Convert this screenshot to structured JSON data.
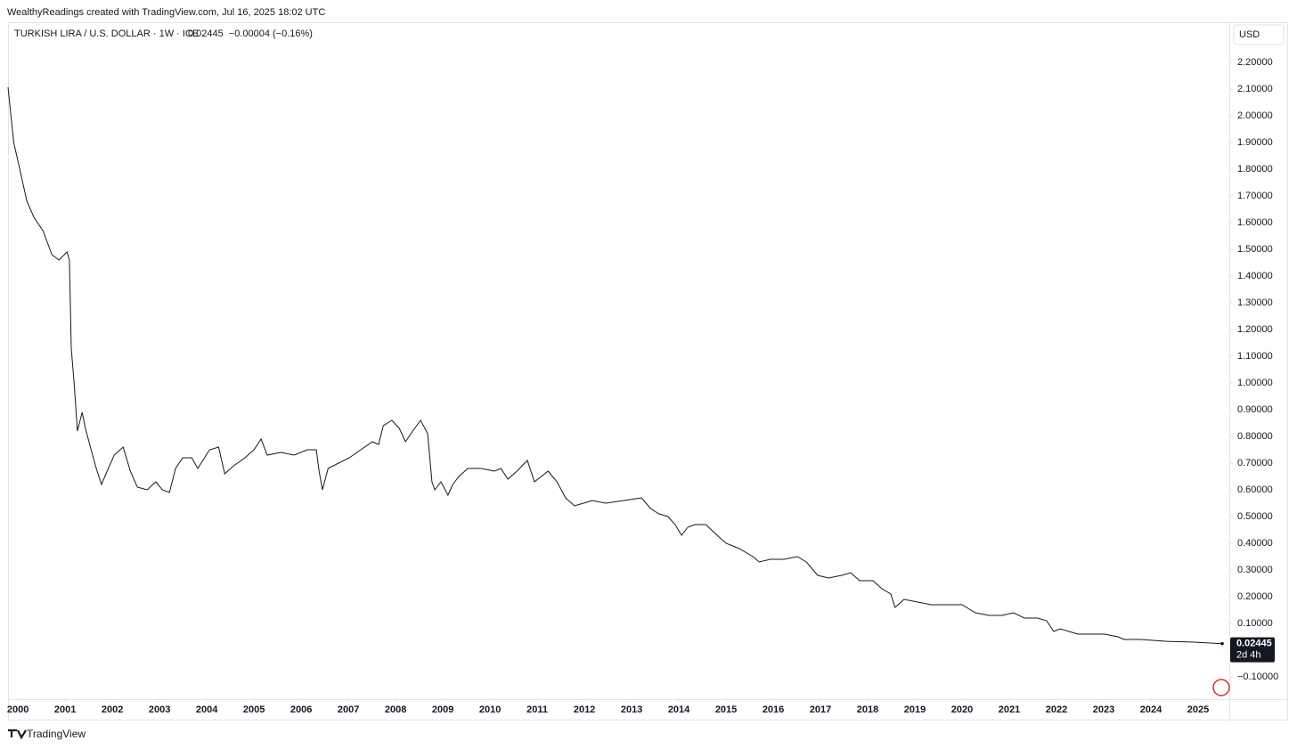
{
  "header": "WealthyReadings created with TradingView.com, Jul 16, 2025 18:02 UTC",
  "footer": "TradingView",
  "chart_data": {
    "type": "line",
    "title": "TURKISH LIRA / U.S. DOLLAR · 1W · ICE",
    "last_price": "0.02445",
    "change": "−0.00004 (−0.16%)",
    "currency": "USD",
    "countdown": "2d 4h",
    "color": "#131722",
    "x": [
      1999.79,
      1999.91,
      2000.04,
      2000.19,
      2000.34,
      2000.53,
      2000.72,
      2000.87,
      2001.04,
      2001.09,
      2001.13,
      2001.19,
      2001.26,
      2001.36,
      2001.43,
      2001.55,
      2001.66,
      2001.77,
      2001.89,
      2002.04,
      2002.23,
      2002.38,
      2002.53,
      2002.74,
      2002.92,
      2003.06,
      2003.21,
      2003.34,
      2003.49,
      2003.68,
      2003.81,
      2004.06,
      2004.25,
      2004.38,
      2004.57,
      2004.81,
      2005.0,
      2005.15,
      2005.28,
      2005.57,
      2005.85,
      2006.13,
      2006.32,
      2006.38,
      2006.45,
      2006.57,
      2006.79,
      2007.02,
      2007.26,
      2007.51,
      2007.64,
      2007.74,
      2007.92,
      2008.08,
      2008.21,
      2008.36,
      2008.53,
      2008.68,
      2008.77,
      2008.83,
      2008.96,
      2009.11,
      2009.21,
      2009.34,
      2009.53,
      2009.81,
      2010.09,
      2010.23,
      2010.38,
      2010.57,
      2010.79,
      2010.94,
      2011.23,
      2011.42,
      2011.6,
      2011.79,
      2011.98,
      2012.17,
      2012.45,
      2012.83,
      2013.21,
      2013.4,
      2013.58,
      2013.77,
      2013.92,
      2014.06,
      2014.19,
      2014.34,
      2014.57,
      2014.81,
      2015.0,
      2015.28,
      2015.57,
      2015.7,
      2015.94,
      2016.23,
      2016.51,
      2016.7,
      2016.94,
      2017.17,
      2017.45,
      2017.64,
      2017.83,
      2018.11,
      2018.3,
      2018.49,
      2018.58,
      2018.77,
      2019.06,
      2019.34,
      2019.62,
      2020.0,
      2020.28,
      2020.57,
      2020.85,
      2021.09,
      2021.32,
      2021.6,
      2021.79,
      2021.94,
      2022.08,
      2022.45,
      2023.02,
      2023.3,
      2023.43,
      2023.77,
      2024.34,
      2024.91,
      2025.51
    ],
    "values": [
      2.107,
      1.9,
      1.8,
      1.68,
      1.62,
      1.57,
      1.48,
      1.46,
      1.49,
      1.46,
      1.13,
      1.0,
      0.82,
      0.89,
      0.83,
      0.75,
      0.68,
      0.62,
      0.67,
      0.73,
      0.76,
      0.67,
      0.61,
      0.6,
      0.63,
      0.6,
      0.59,
      0.68,
      0.72,
      0.72,
      0.68,
      0.75,
      0.76,
      0.66,
      0.69,
      0.72,
      0.75,
      0.79,
      0.73,
      0.74,
      0.73,
      0.75,
      0.75,
      0.67,
      0.6,
      0.68,
      0.7,
      0.72,
      0.75,
      0.78,
      0.77,
      0.84,
      0.86,
      0.83,
      0.78,
      0.82,
      0.86,
      0.81,
      0.63,
      0.6,
      0.63,
      0.58,
      0.62,
      0.65,
      0.68,
      0.68,
      0.67,
      0.68,
      0.64,
      0.67,
      0.71,
      0.63,
      0.67,
      0.63,
      0.57,
      0.54,
      0.55,
      0.56,
      0.55,
      0.56,
      0.57,
      0.53,
      0.51,
      0.5,
      0.47,
      0.43,
      0.46,
      0.47,
      0.47,
      0.43,
      0.4,
      0.38,
      0.35,
      0.33,
      0.34,
      0.34,
      0.35,
      0.33,
      0.28,
      0.27,
      0.28,
      0.29,
      0.26,
      0.26,
      0.23,
      0.21,
      0.16,
      0.19,
      0.18,
      0.17,
      0.17,
      0.17,
      0.14,
      0.13,
      0.13,
      0.14,
      0.12,
      0.12,
      0.11,
      0.07,
      0.08,
      0.06,
      0.06,
      0.05,
      0.04,
      0.04,
      0.033,
      0.03,
      0.02445
    ],
    "xlim": [
      1999.79,
      2025.66
    ],
    "ylim": [
      -0.18333,
      2.35
    ],
    "xticks": [
      2000,
      2001,
      2002,
      2003,
      2004,
      2005,
      2006,
      2007,
      2008,
      2009,
      2010,
      2011,
      2012,
      2013,
      2014,
      2015,
      2016,
      2017,
      2018,
      2019,
      2020,
      2021,
      2022,
      2023,
      2024,
      2025
    ],
    "yticks": [
      {
        "value": 2.2,
        "label": "2.20000"
      },
      {
        "value": 2.1,
        "label": "2.10000"
      },
      {
        "value": 2.0,
        "label": "2.00000"
      },
      {
        "value": 1.9,
        "label": "1.90000"
      },
      {
        "value": 1.8,
        "label": "1.80000"
      },
      {
        "value": 1.7,
        "label": "1.70000"
      },
      {
        "value": 1.6,
        "label": "1.60000"
      },
      {
        "value": 1.5,
        "label": "1.50000"
      },
      {
        "value": 1.4,
        "label": "1.40000"
      },
      {
        "value": 1.3,
        "label": "1.30000"
      },
      {
        "value": 1.2,
        "label": "1.20000"
      },
      {
        "value": 1.1,
        "label": "1.10000"
      },
      {
        "value": 1.0,
        "label": "1.00000"
      },
      {
        "value": 0.9,
        "label": "0.90000"
      },
      {
        "value": 0.8,
        "label": "0.80000"
      },
      {
        "value": 0.7,
        "label": "0.70000"
      },
      {
        "value": 0.6,
        "label": "0.60000"
      },
      {
        "value": 0.5,
        "label": "0.50000"
      },
      {
        "value": 0.4,
        "label": "0.40000"
      },
      {
        "value": 0.3,
        "label": "0.30000"
      },
      {
        "value": 0.2,
        "label": "0.20000"
      },
      {
        "value": 0.1,
        "label": "0.10000"
      },
      {
        "value": -0.1,
        "label": "−0.10000"
      }
    ],
    "grid": false
  }
}
